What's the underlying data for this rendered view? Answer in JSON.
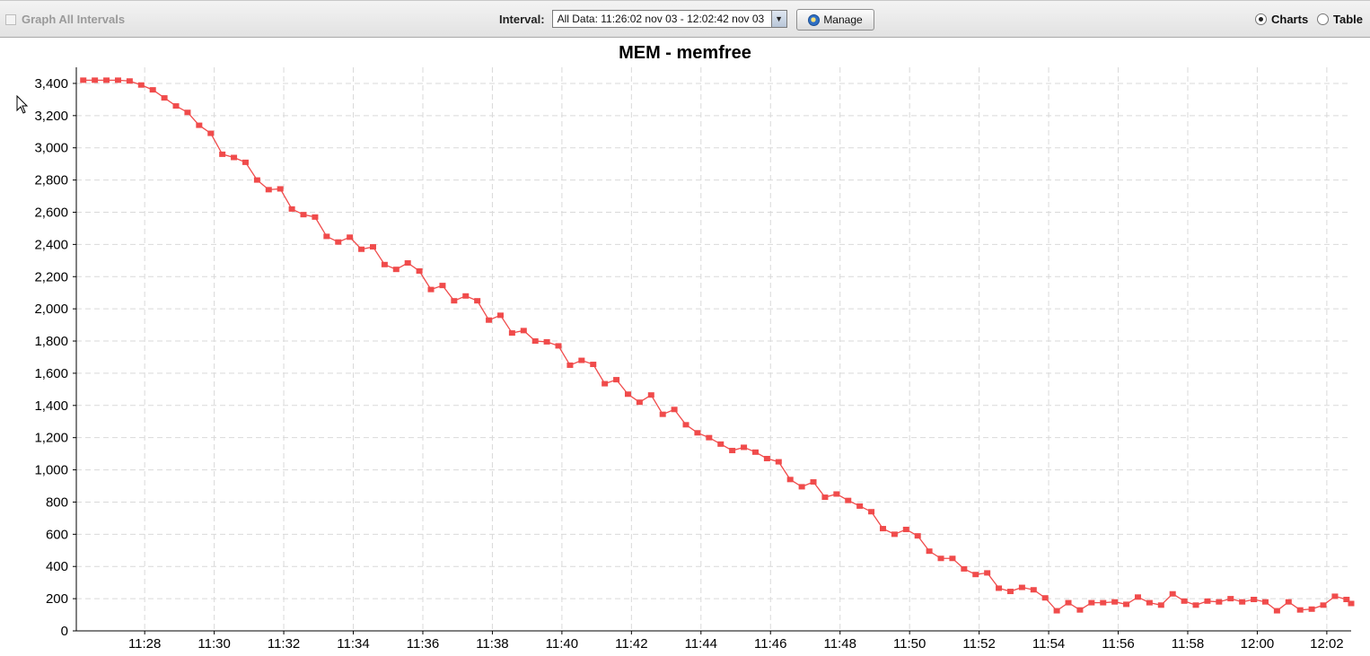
{
  "toolbar": {
    "graph_all_label": "Graph All Intervals",
    "interval_label": "Interval:",
    "interval_value": "All Data: 11:26:02 nov 03 - 12:02:42 nov 03",
    "manage_label": "Manage",
    "view_charts_label": "Charts",
    "view_table_label": "Table",
    "selected_view": "Charts"
  },
  "colors": {
    "series": "#f04b4b",
    "grid": "#d9d9d9",
    "axis": "#000000"
  },
  "chart_data": {
    "type": "line",
    "title": "MEM - memfree",
    "xlabel": "",
    "ylabel": "",
    "x_range": [
      "11:26:02",
      "12:02:42"
    ],
    "ylim": [
      0,
      3500
    ],
    "y_ticks": [
      0,
      200,
      400,
      600,
      800,
      1000,
      1200,
      1400,
      1600,
      1800,
      2000,
      2200,
      2400,
      2600,
      2800,
      3000,
      3200,
      3400
    ],
    "y_tick_labels": [
      "0",
      "200",
      "400",
      "600",
      "800",
      "1,000",
      "1,200",
      "1,400",
      "1,600",
      "1,800",
      "2,000",
      "2,200",
      "2,400",
      "2,600",
      "2,800",
      "3,000",
      "3,200",
      "3,400"
    ],
    "x_ticks": [
      "11:28",
      "11:30",
      "11:32",
      "11:34",
      "11:36",
      "11:38",
      "11:40",
      "11:42",
      "11:44",
      "11:46",
      "11:48",
      "11:50",
      "11:52",
      "11:54",
      "11:56",
      "11:58",
      "12:00",
      "12:02"
    ],
    "grid": true,
    "series": [
      {
        "x": [
          "11:26:14",
          "11:26:34",
          "11:26:54",
          "11:27:14",
          "11:27:34",
          "11:27:54",
          "11:28:14",
          "11:28:34",
          "11:28:54",
          "11:29:14",
          "11:29:34",
          "11:29:54",
          "11:30:14",
          "11:30:34",
          "11:30:54",
          "11:31:14",
          "11:31:34",
          "11:31:54",
          "11:32:14",
          "11:32:34",
          "11:32:54",
          "11:33:14",
          "11:33:34",
          "11:33:54",
          "11:34:14",
          "11:34:34",
          "11:34:54",
          "11:35:14",
          "11:35:34",
          "11:35:54",
          "11:36:14",
          "11:36:34",
          "11:36:54",
          "11:37:14",
          "11:37:34",
          "11:37:54",
          "11:38:14",
          "11:38:34",
          "11:38:54",
          "11:39:14",
          "11:39:34",
          "11:39:54",
          "11:40:14",
          "11:40:34",
          "11:40:54",
          "11:41:14",
          "11:41:34",
          "11:41:54",
          "11:42:14",
          "11:42:34",
          "11:42:54",
          "11:43:14",
          "11:43:34",
          "11:43:54",
          "11:44:14",
          "11:44:34",
          "11:44:54",
          "11:45:14",
          "11:45:34",
          "11:45:54",
          "11:46:14",
          "11:46:34",
          "11:46:54",
          "11:47:14",
          "11:47:34",
          "11:47:54",
          "11:48:14",
          "11:48:34",
          "11:48:54",
          "11:49:14",
          "11:49:34",
          "11:49:54",
          "11:50:14",
          "11:50:34",
          "11:50:54",
          "11:51:14",
          "11:51:34",
          "11:51:54",
          "11:52:14",
          "11:52:34",
          "11:52:54",
          "11:53:14",
          "11:53:34",
          "11:53:54",
          "11:54:14",
          "11:54:34",
          "11:54:54",
          "11:55:14",
          "11:55:34",
          "11:55:54",
          "11:56:14",
          "11:56:34",
          "11:56:54",
          "11:57:14",
          "11:57:34",
          "11:57:54",
          "11:58:14",
          "11:58:34",
          "11:58:54",
          "11:59:14",
          "11:59:34",
          "11:59:54",
          "12:00:14",
          "12:00:34",
          "12:00:54",
          "12:01:14",
          "12:01:34",
          "12:01:54",
          "12:02:14",
          "12:02:34",
          "12:02:42"
        ],
        "values": [
          3420,
          3420,
          3420,
          3420,
          3415,
          3390,
          3360,
          3310,
          3260,
          3220,
          3140,
          3090,
          2960,
          2940,
          2910,
          2800,
          2740,
          2745,
          2620,
          2585,
          2570,
          2450,
          2415,
          2445,
          2370,
          2385,
          2275,
          2245,
          2285,
          2235,
          2120,
          2145,
          2050,
          2080,
          2050,
          1930,
          1960,
          1850,
          1865,
          1800,
          1795,
          1770,
          1650,
          1680,
          1655,
          1535,
          1560,
          1470,
          1420,
          1465,
          1345,
          1375,
          1280,
          1230,
          1200,
          1160,
          1120,
          1140,
          1110,
          1070,
          1050,
          940,
          895,
          925,
          830,
          850,
          810,
          775,
          740,
          635,
          600,
          630,
          590,
          495,
          450,
          450,
          385,
          350,
          360,
          265,
          245,
          270,
          255,
          205,
          125,
          175,
          130,
          175,
          175,
          180,
          165,
          210,
          175,
          160,
          230,
          185,
          160,
          185,
          180,
          200,
          180,
          195,
          180,
          125,
          180,
          130,
          135,
          160,
          215,
          195,
          170
        ]
      }
    ]
  }
}
